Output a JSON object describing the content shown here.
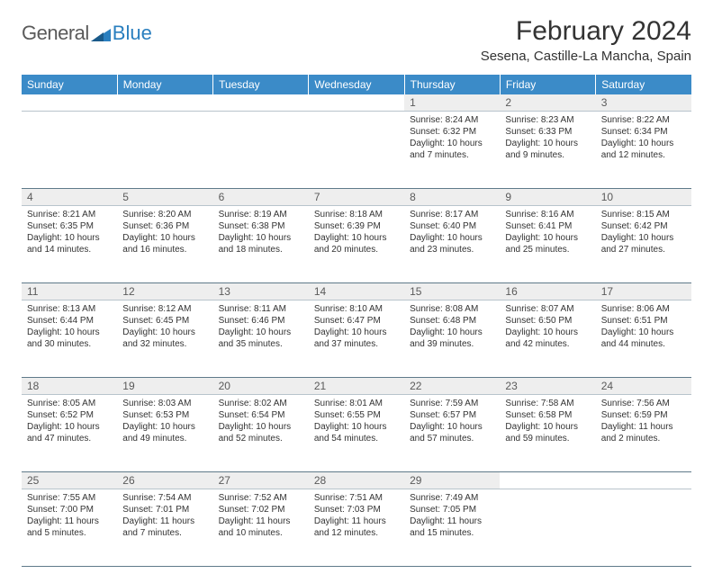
{
  "logo": {
    "text1": "General",
    "text2": "Blue"
  },
  "title": "February 2024",
  "location": "Sesena, Castille-La Mancha, Spain",
  "colors": {
    "header_bg": "#3b8bc8",
    "header_fg": "#ffffff",
    "daynum_bg": "#eeeeee",
    "rule": "#5f7a8a",
    "logo_gray": "#5a5a5a",
    "logo_blue": "#2a7fbf"
  },
  "weekdays": [
    "Sunday",
    "Monday",
    "Tuesday",
    "Wednesday",
    "Thursday",
    "Friday",
    "Saturday"
  ],
  "weeks": [
    [
      null,
      null,
      null,
      null,
      {
        "n": "1",
        "sr": "Sunrise: 8:24 AM",
        "ss": "Sunset: 6:32 PM",
        "d1": "Daylight: 10 hours",
        "d2": "and 7 minutes."
      },
      {
        "n": "2",
        "sr": "Sunrise: 8:23 AM",
        "ss": "Sunset: 6:33 PM",
        "d1": "Daylight: 10 hours",
        "d2": "and 9 minutes."
      },
      {
        "n": "3",
        "sr": "Sunrise: 8:22 AM",
        "ss": "Sunset: 6:34 PM",
        "d1": "Daylight: 10 hours",
        "d2": "and 12 minutes."
      }
    ],
    [
      {
        "n": "4",
        "sr": "Sunrise: 8:21 AM",
        "ss": "Sunset: 6:35 PM",
        "d1": "Daylight: 10 hours",
        "d2": "and 14 minutes."
      },
      {
        "n": "5",
        "sr": "Sunrise: 8:20 AM",
        "ss": "Sunset: 6:36 PM",
        "d1": "Daylight: 10 hours",
        "d2": "and 16 minutes."
      },
      {
        "n": "6",
        "sr": "Sunrise: 8:19 AM",
        "ss": "Sunset: 6:38 PM",
        "d1": "Daylight: 10 hours",
        "d2": "and 18 minutes."
      },
      {
        "n": "7",
        "sr": "Sunrise: 8:18 AM",
        "ss": "Sunset: 6:39 PM",
        "d1": "Daylight: 10 hours",
        "d2": "and 20 minutes."
      },
      {
        "n": "8",
        "sr": "Sunrise: 8:17 AM",
        "ss": "Sunset: 6:40 PM",
        "d1": "Daylight: 10 hours",
        "d2": "and 23 minutes."
      },
      {
        "n": "9",
        "sr": "Sunrise: 8:16 AM",
        "ss": "Sunset: 6:41 PM",
        "d1": "Daylight: 10 hours",
        "d2": "and 25 minutes."
      },
      {
        "n": "10",
        "sr": "Sunrise: 8:15 AM",
        "ss": "Sunset: 6:42 PM",
        "d1": "Daylight: 10 hours",
        "d2": "and 27 minutes."
      }
    ],
    [
      {
        "n": "11",
        "sr": "Sunrise: 8:13 AM",
        "ss": "Sunset: 6:44 PM",
        "d1": "Daylight: 10 hours",
        "d2": "and 30 minutes."
      },
      {
        "n": "12",
        "sr": "Sunrise: 8:12 AM",
        "ss": "Sunset: 6:45 PM",
        "d1": "Daylight: 10 hours",
        "d2": "and 32 minutes."
      },
      {
        "n": "13",
        "sr": "Sunrise: 8:11 AM",
        "ss": "Sunset: 6:46 PM",
        "d1": "Daylight: 10 hours",
        "d2": "and 35 minutes."
      },
      {
        "n": "14",
        "sr": "Sunrise: 8:10 AM",
        "ss": "Sunset: 6:47 PM",
        "d1": "Daylight: 10 hours",
        "d2": "and 37 minutes."
      },
      {
        "n": "15",
        "sr": "Sunrise: 8:08 AM",
        "ss": "Sunset: 6:48 PM",
        "d1": "Daylight: 10 hours",
        "d2": "and 39 minutes."
      },
      {
        "n": "16",
        "sr": "Sunrise: 8:07 AM",
        "ss": "Sunset: 6:50 PM",
        "d1": "Daylight: 10 hours",
        "d2": "and 42 minutes."
      },
      {
        "n": "17",
        "sr": "Sunrise: 8:06 AM",
        "ss": "Sunset: 6:51 PM",
        "d1": "Daylight: 10 hours",
        "d2": "and 44 minutes."
      }
    ],
    [
      {
        "n": "18",
        "sr": "Sunrise: 8:05 AM",
        "ss": "Sunset: 6:52 PM",
        "d1": "Daylight: 10 hours",
        "d2": "and 47 minutes."
      },
      {
        "n": "19",
        "sr": "Sunrise: 8:03 AM",
        "ss": "Sunset: 6:53 PM",
        "d1": "Daylight: 10 hours",
        "d2": "and 49 minutes."
      },
      {
        "n": "20",
        "sr": "Sunrise: 8:02 AM",
        "ss": "Sunset: 6:54 PM",
        "d1": "Daylight: 10 hours",
        "d2": "and 52 minutes."
      },
      {
        "n": "21",
        "sr": "Sunrise: 8:01 AM",
        "ss": "Sunset: 6:55 PM",
        "d1": "Daylight: 10 hours",
        "d2": "and 54 minutes."
      },
      {
        "n": "22",
        "sr": "Sunrise: 7:59 AM",
        "ss": "Sunset: 6:57 PM",
        "d1": "Daylight: 10 hours",
        "d2": "and 57 minutes."
      },
      {
        "n": "23",
        "sr": "Sunrise: 7:58 AM",
        "ss": "Sunset: 6:58 PM",
        "d1": "Daylight: 10 hours",
        "d2": "and 59 minutes."
      },
      {
        "n": "24",
        "sr": "Sunrise: 7:56 AM",
        "ss": "Sunset: 6:59 PM",
        "d1": "Daylight: 11 hours",
        "d2": "and 2 minutes."
      }
    ],
    [
      {
        "n": "25",
        "sr": "Sunrise: 7:55 AM",
        "ss": "Sunset: 7:00 PM",
        "d1": "Daylight: 11 hours",
        "d2": "and 5 minutes."
      },
      {
        "n": "26",
        "sr": "Sunrise: 7:54 AM",
        "ss": "Sunset: 7:01 PM",
        "d1": "Daylight: 11 hours",
        "d2": "and 7 minutes."
      },
      {
        "n": "27",
        "sr": "Sunrise: 7:52 AM",
        "ss": "Sunset: 7:02 PM",
        "d1": "Daylight: 11 hours",
        "d2": "and 10 minutes."
      },
      {
        "n": "28",
        "sr": "Sunrise: 7:51 AM",
        "ss": "Sunset: 7:03 PM",
        "d1": "Daylight: 11 hours",
        "d2": "and 12 minutes."
      },
      {
        "n": "29",
        "sr": "Sunrise: 7:49 AM",
        "ss": "Sunset: 7:05 PM",
        "d1": "Daylight: 11 hours",
        "d2": "and 15 minutes."
      },
      null,
      null
    ]
  ]
}
